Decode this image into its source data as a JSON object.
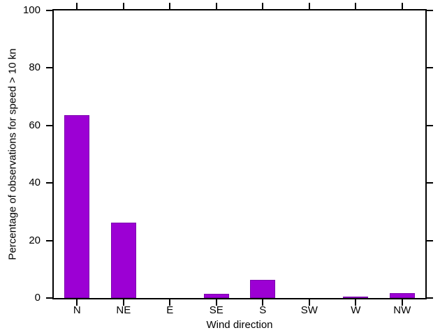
{
  "figure": {
    "background": "#ffffff",
    "axis_color": "#000000",
    "bar_color": "#9c00d4",
    "bar_border_color": "#7d00ad"
  },
  "chart_data": {
    "type": "bar",
    "categories": [
      "N",
      "NE",
      "E",
      "SE",
      "S",
      "SW",
      "W",
      "NW"
    ],
    "values": [
      63.5,
      26.3,
      0,
      1.4,
      6.3,
      0,
      0.4,
      1.8
    ],
    "title": "",
    "xlabel": "Wind direction",
    "ylabel": "Percentage of observations for speed > 10 kn",
    "ylim": [
      0,
      100
    ],
    "yticks": [
      0,
      20,
      40,
      60,
      80,
      100
    ],
    "grid": false,
    "legend_position": "none",
    "frame": "box-with-outward-ticks"
  }
}
